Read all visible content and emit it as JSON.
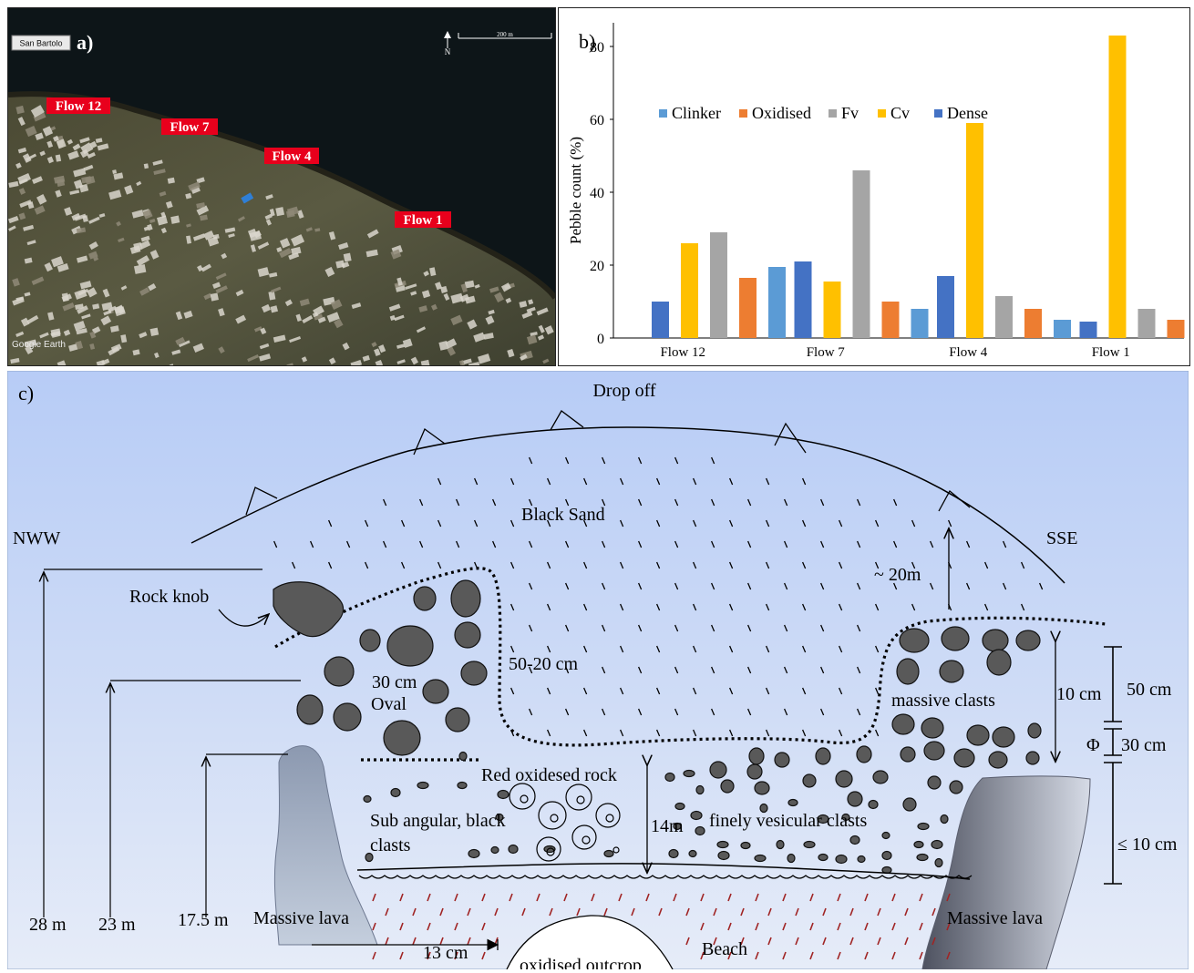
{
  "panel_a": {
    "letter": "a)",
    "location": "San Bartolo",
    "north": "N",
    "scale": "200 m",
    "credit": "Google Earth",
    "flows": [
      "Flow 12",
      "Flow 7",
      "Flow 4",
      "Flow 1"
    ],
    "colors": {
      "label_bg": "#e8001c",
      "label_text": "#ffffff"
    }
  },
  "panel_c": {
    "letter": "c)",
    "drop_off": "Drop off",
    "nww": "NWW",
    "sse": "SSE",
    "black_sand": "Black Sand",
    "approx_20m": "~ 20m",
    "rock_knob": "Rock knob",
    "clast_30cm": "30 cm",
    "oval": "Oval",
    "size_50_20": "50-20 cm",
    "massive_clasts": "massive clasts",
    "ten_cm": "10 cm",
    "red_oxidised": "Red oxidesed rock",
    "sub_angular": "Sub angular, black",
    "clasts": "clasts",
    "fourteen_m": "14m",
    "finely_vesicular": "finely vesicular clasts",
    "h_28": "28 m",
    "h_23": "23 m",
    "h_17_5": "17.5 m",
    "massive_lava_left": "Massive lava",
    "massive_lava_right": "Massive lava",
    "thirteen_cm": "13 cm",
    "beach": "Beach",
    "oxidised_outcrop": "oxidised outcrop",
    "phi_50": "50 cm",
    "phi_symbol": "Φ",
    "phi_30": "30 cm",
    "phi_le10": "≤ 10 cm"
  },
  "chart_data": {
    "type": "bar",
    "panel_letter": "b)",
    "ylabel": "Pebble count (%)",
    "ylim": [
      0,
      85
    ],
    "yticks": [
      0,
      20,
      40,
      60,
      80
    ],
    "categories": [
      "Flow 12",
      "Flow 7",
      "Flow 4",
      "Flow 1"
    ],
    "legend": [
      {
        "name": "Clinker",
        "color": "#5b9bd5"
      },
      {
        "name": "Oxidised",
        "color": "#ed7d31"
      },
      {
        "name": "Fv",
        "color": "#a5a5a5"
      },
      {
        "name": "Cv",
        "color": "#ffc000"
      },
      {
        "name": "Dense",
        "color": "#4472c4"
      }
    ],
    "groups": [
      {
        "category": "Flow 12",
        "bars": [
          {
            "series": "Dense",
            "value": 10
          },
          {
            "series": "Cv",
            "value": 26
          },
          {
            "series": "Fv",
            "value": 29
          },
          {
            "series": "Oxidised",
            "value": 16.5
          },
          {
            "series": "Clinker",
            "value": 19.5
          }
        ]
      },
      {
        "category": "Flow 7",
        "bars": [
          {
            "series": "Dense",
            "value": 21
          },
          {
            "series": "Cv",
            "value": 15.5
          },
          {
            "series": "Fv",
            "value": 46
          },
          {
            "series": "Oxidised",
            "value": 10
          },
          {
            "series": "Clinker",
            "value": 8
          }
        ]
      },
      {
        "category": "Flow 4",
        "bars": [
          {
            "series": "Dense",
            "value": 17
          },
          {
            "series": "Cv",
            "value": 59
          },
          {
            "series": "Fv",
            "value": 11.5
          },
          {
            "series": "Oxidised",
            "value": 8
          },
          {
            "series": "Clinker",
            "value": 5
          }
        ]
      },
      {
        "category": "Flow 1",
        "bars": [
          {
            "series": "Dense",
            "value": 4.5
          },
          {
            "series": "Cv",
            "value": 83
          },
          {
            "series": "Fv",
            "value": 8
          },
          {
            "series": "Oxidised",
            "value": 5
          }
        ]
      }
    ]
  }
}
